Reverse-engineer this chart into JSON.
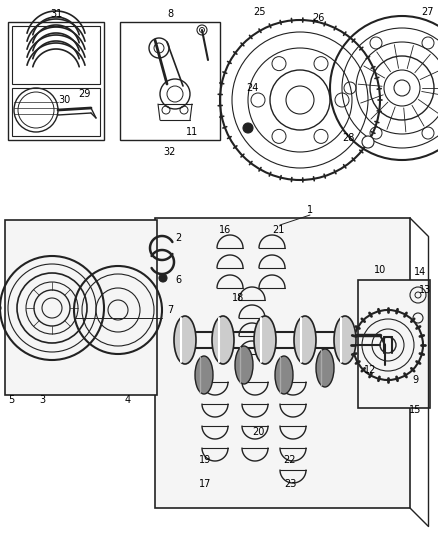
{
  "bg_color": "#ffffff",
  "lc": "#222222",
  "gray": "#888888",
  "lightgray": "#cccccc"
}
